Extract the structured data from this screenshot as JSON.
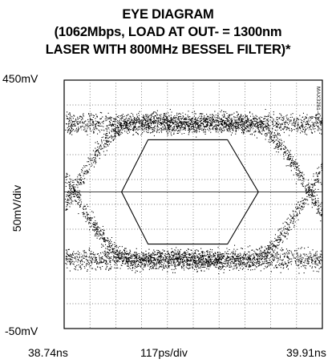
{
  "chart_data": {
    "type": "scatter",
    "title": "EYE DIAGRAM",
    "subtitle_lines": [
      "(1062Mbps, LOAD AT OUT- = 1300nm",
      "LASER WITH 800MHz BESSEL FILTER)*"
    ],
    "ylabel": "50mV/div",
    "xlabel": "117ps/div",
    "y_top_label": "450mV",
    "y_bottom_label": "-50mV",
    "x_left_label": "38.74ns",
    "x_right_label": "39.91ns",
    "part_tag": "MAX3261-4",
    "ylim": [
      -50,
      450
    ],
    "xlim_ns": [
      38.74,
      39.91
    ],
    "grid": true,
    "grid_divisions": {
      "x": 10,
      "y": 10
    },
    "levels_mV": {
      "high": 363,
      "low": 88,
      "crossing": 225
    },
    "crossing_times_ns": [
      38.78,
      39.85
    ],
    "mask_mV": {
      "top": 330,
      "bottom": 120,
      "center": 225
    },
    "mask_times_ns": [
      39.0,
      39.12,
      39.48,
      39.62
    ],
    "trace_color": "#000000"
  }
}
